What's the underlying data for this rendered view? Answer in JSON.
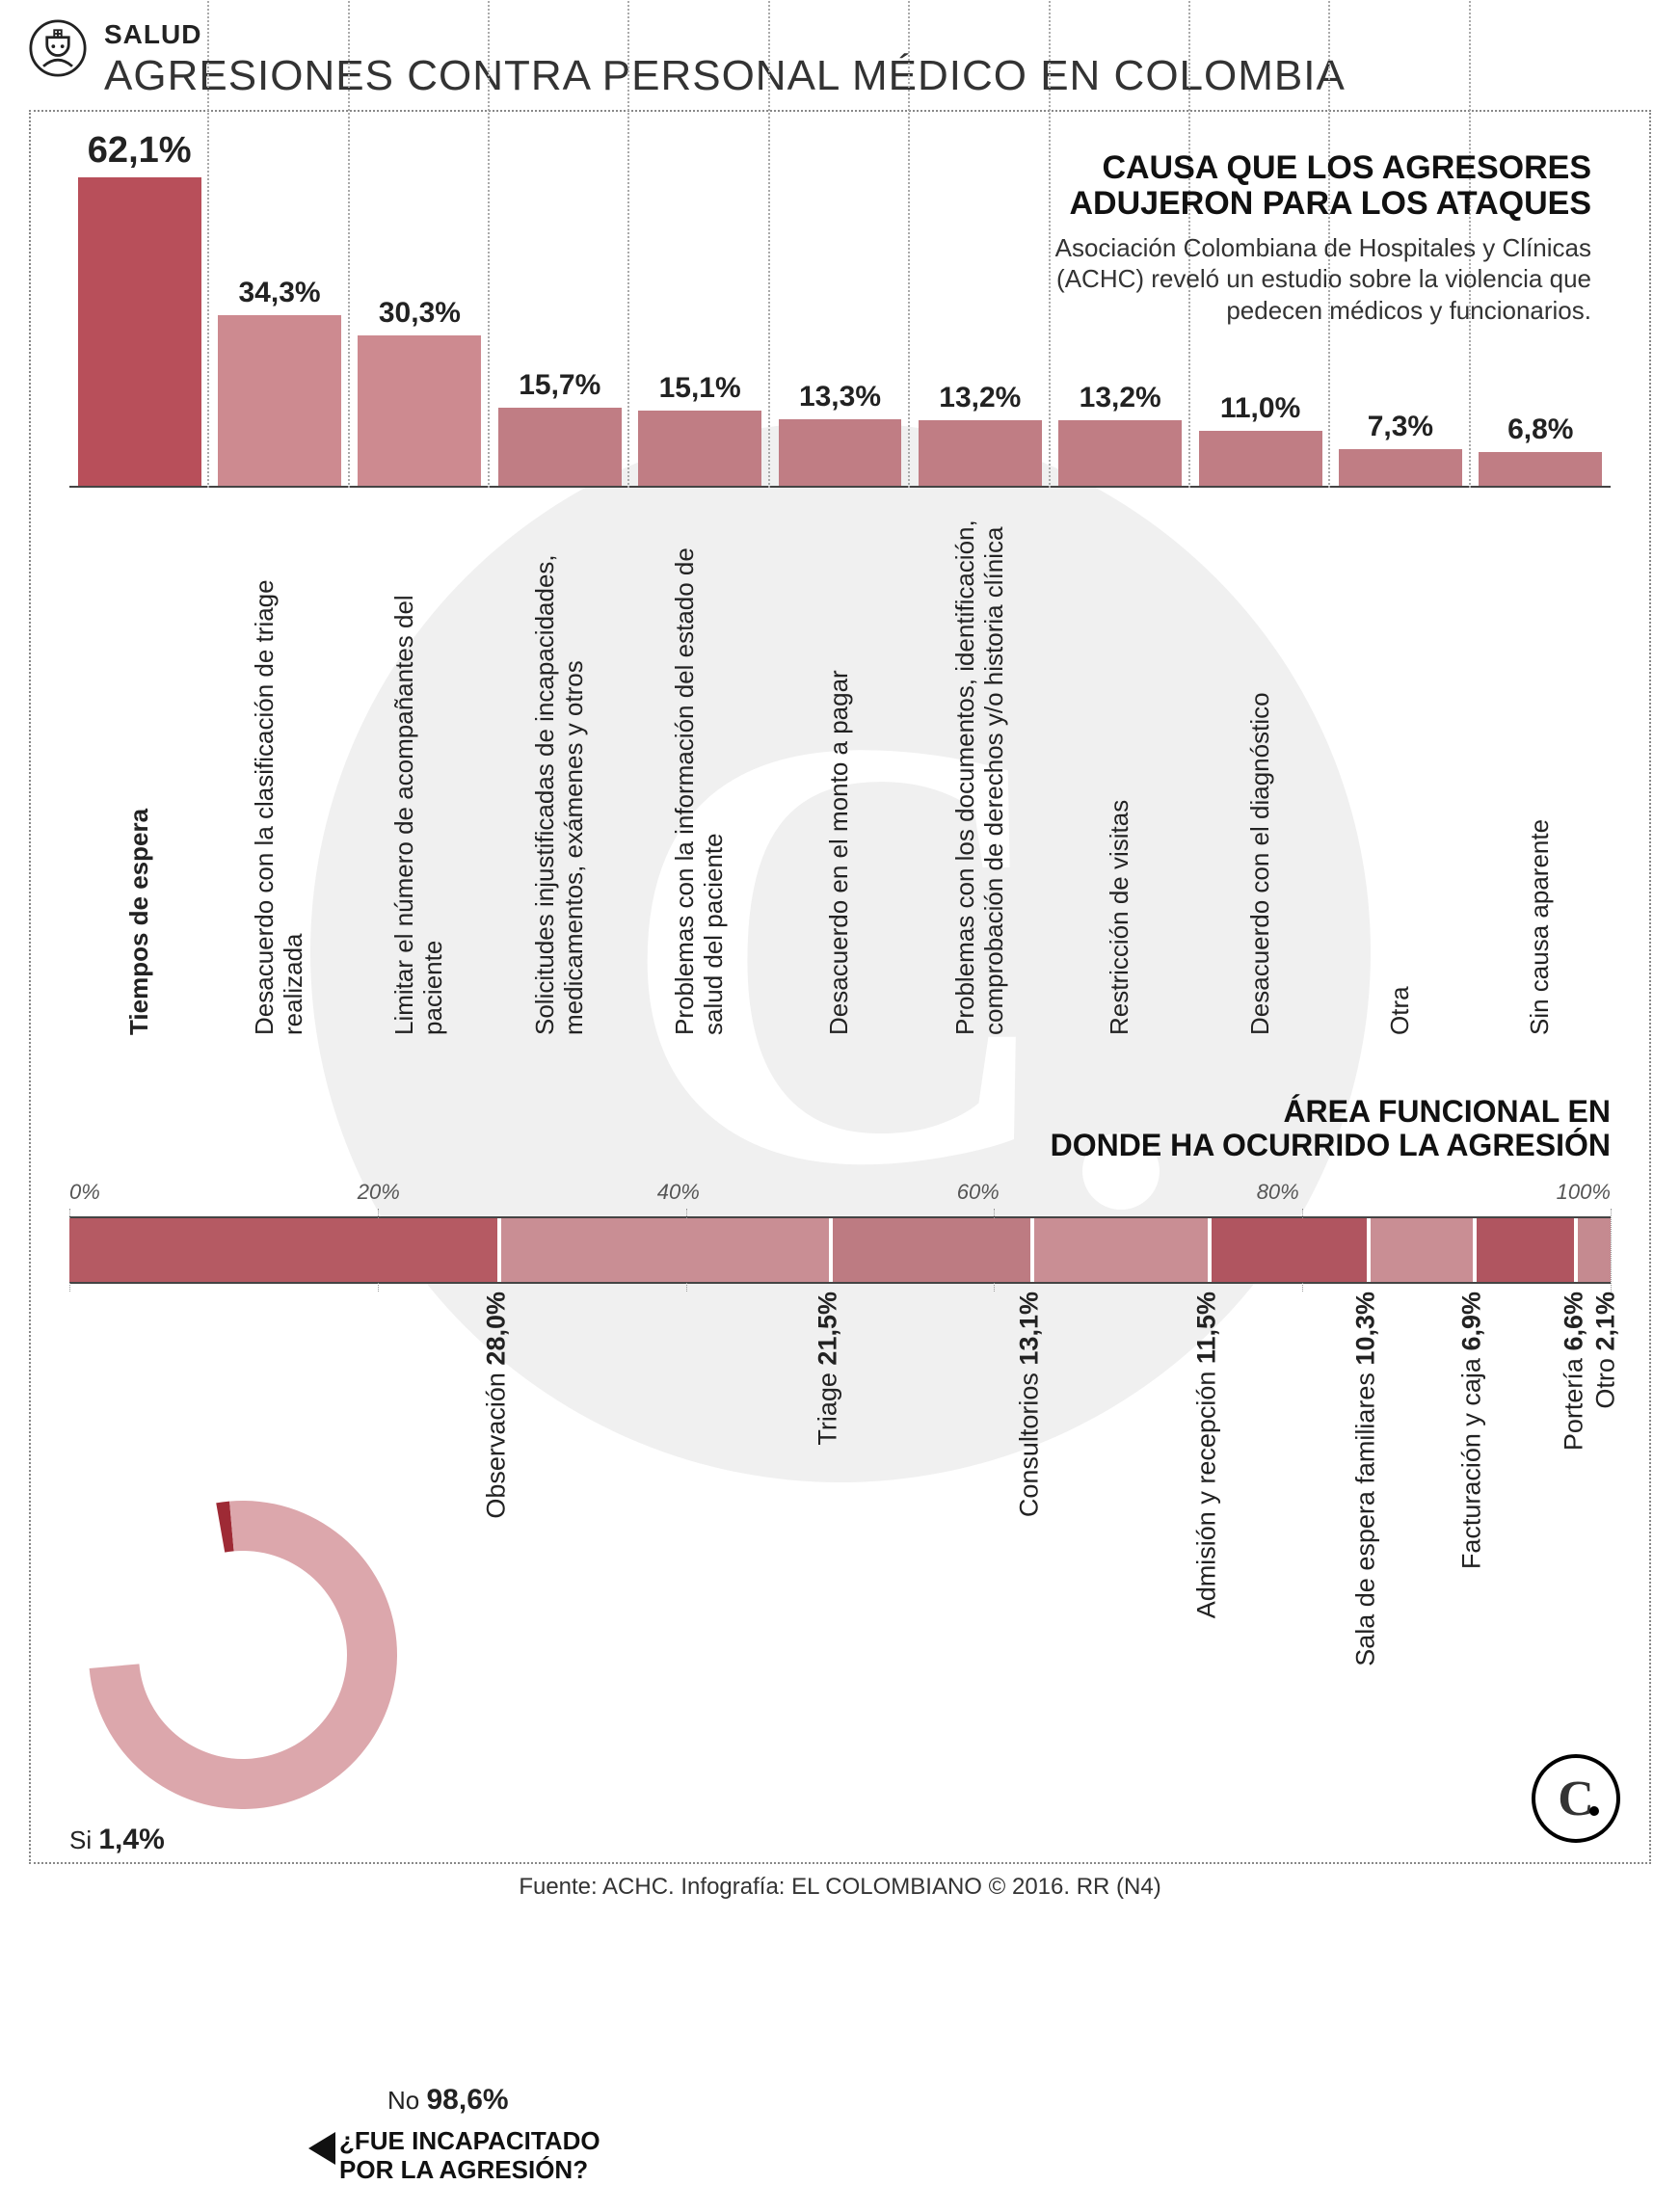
{
  "header": {
    "category": "SALUD",
    "title": "AGRESIONES CONTRA PERSONAL MÉDICO EN COLOMBIA"
  },
  "caption": {
    "title_l1": "CAUSA QUE LOS AGRESORES",
    "title_l2": "ADUJERON PARA LOS ATAQUES",
    "desc": "Asociación Colombiana de Hospitales y Clínicas (ACHC) reveló un estudio sobre la violencia que pedecen médicos y funcionarios."
  },
  "bar_chart": {
    "max": 62.1,
    "value_fontsize": 30,
    "label_fontsize": 26,
    "bars": [
      {
        "label": "Tiempos de espera",
        "value": 62.1,
        "value_str": "62,1%",
        "color": "#b84f5a",
        "bold": true
      },
      {
        "label": "Desacuerdo con la clasificación de triage realizada",
        "value": 34.3,
        "value_str": "34,3%",
        "color": "#cd8a90",
        "bold": false
      },
      {
        "label": "Limitar el número de acompañantes del paciente",
        "value": 30.3,
        "value_str": "30,3%",
        "color": "#cd8a90",
        "bold": false
      },
      {
        "label": "Solicitudes injustificadas de incapacidades, medicamentos, exámenes y otros",
        "value": 15.7,
        "value_str": "15,7%",
        "color": "#c07d84",
        "bold": false
      },
      {
        "label": "Problemas con la información del estado de salud del paciente",
        "value": 15.1,
        "value_str": "15,1%",
        "color": "#c07d84",
        "bold": false
      },
      {
        "label": "Desacuerdo en el monto a pagar",
        "value": 13.3,
        "value_str": "13,3%",
        "color": "#c07d84",
        "bold": false
      },
      {
        "label": "Problemas con los documentos, identificación, comprobación de derechos y/o historia clínica",
        "value": 13.2,
        "value_str": "13,2%",
        "color": "#c07d84",
        "bold": false
      },
      {
        "label": "Restricción de visitas",
        "value": 13.2,
        "value_str": "13,2%",
        "color": "#c07d84",
        "bold": false
      },
      {
        "label": "Desacuerdo con el diagnóstico",
        "value": 11.0,
        "value_str": "11,0%",
        "color": "#c07d84",
        "bold": false
      },
      {
        "label": "Otra",
        "value": 7.3,
        "value_str": "7,3%",
        "color": "#c07d84",
        "bold": false
      },
      {
        "label": "Sin causa aparente",
        "value": 6.8,
        "value_str": "6,8%",
        "color": "#c07d84",
        "bold": false
      }
    ]
  },
  "stacked": {
    "title_l1": "ÁREA FUNCIONAL EN",
    "title_l2": "DONDE HA OCURRIDO LA AGRESIÓN",
    "scale": [
      "0%",
      "20%",
      "40%",
      "60%",
      "80%",
      "100%"
    ],
    "segments": [
      {
        "label": "Observación",
        "pct": 28.0,
        "pct_str": "28,0%",
        "color": "#b55a63"
      },
      {
        "label": "Triage",
        "pct": 21.5,
        "pct_str": "21,5%",
        "color": "#c98e94"
      },
      {
        "label": "Consultorios",
        "pct": 13.1,
        "pct_str": "13,1%",
        "color": "#bd7b82"
      },
      {
        "label": "Admisión y recepción",
        "pct": 11.5,
        "pct_str": "11,5%",
        "color": "#c98e94"
      },
      {
        "label": "Sala de espera familiares",
        "pct": 10.3,
        "pct_str": "10,3%",
        "color": "#b05560"
      },
      {
        "label": "Facturación y caja",
        "pct": 6.9,
        "pct_str": "6,9%",
        "color": "#c98e94"
      },
      {
        "label": "Portería",
        "pct": 6.6,
        "pct_str": "6,6%",
        "color": "#b05560"
      },
      {
        "label": "Otro",
        "pct": 2.1,
        "pct_str": "2,1%",
        "color": "#c58a90"
      }
    ]
  },
  "donut": {
    "si_label": "Si",
    "si_pct": "1,4%",
    "no_label": "No",
    "no_pct": "98,6%",
    "question_l1": "¿FUE INCAPACITADO",
    "question_l2": "POR LA AGRESIÓN?",
    "ring_color": "#dca7ac",
    "si_color": "#9e2a35",
    "si_deg": 5,
    "radius_outer": 160,
    "radius_inner": 108
  },
  "source": "Fuente: ACHC. Infografía: EL COLOMBIANO © 2016. RR (N4)",
  "colors": {
    "text": "#222222",
    "border": "#444444",
    "watermark_bg": "#f0f0f0"
  }
}
